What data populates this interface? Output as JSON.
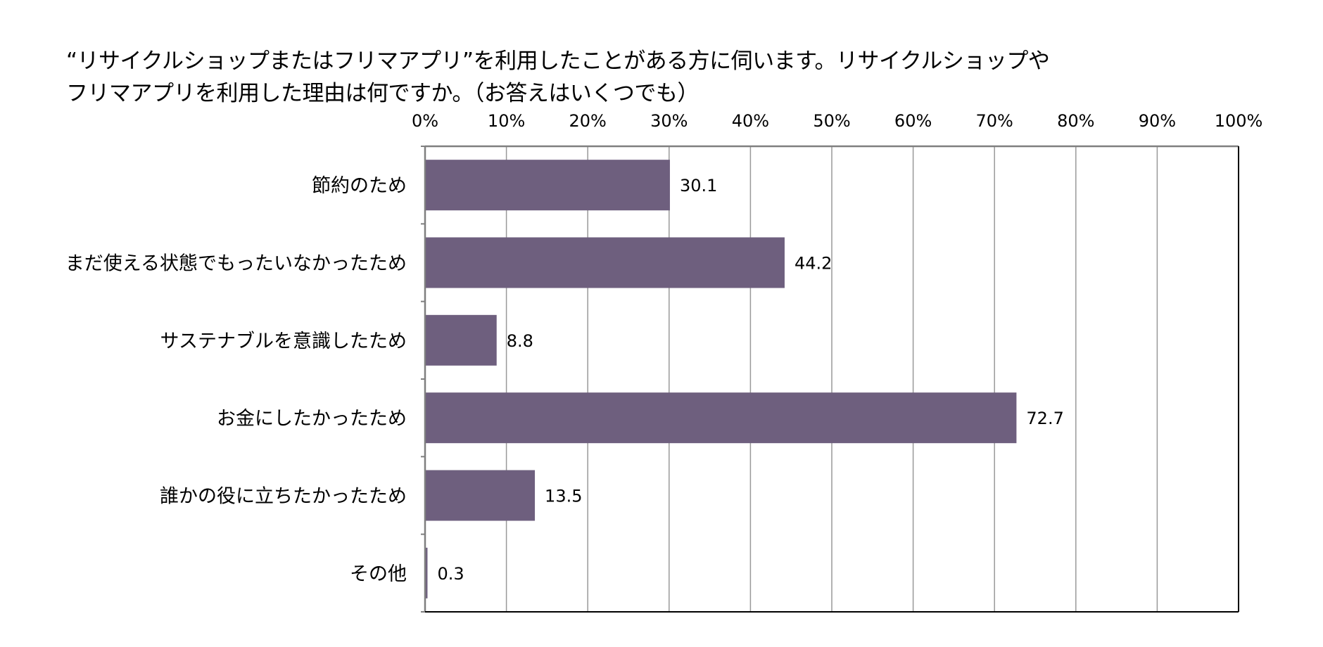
{
  "chart_data": {
    "type": "bar",
    "orientation": "horizontal",
    "title_lines": [
      "“リサイクルショップまたはフリマアプリ”を利用したことがある方に伺います。リサイクルショップや",
      "フリマアプリを利用した理由は何ですか。（お答えはいくつでも）"
    ],
    "categories": [
      "節約のため",
      "まだ使える状態でもったいなかったため",
      "サステナブルを意識したため",
      "お金にしたかったため",
      "誰かの役に立ちたかったため",
      "その他"
    ],
    "values": [
      30.1,
      44.2,
      8.8,
      72.7,
      13.5,
      0.3
    ],
    "value_labels": [
      "30.1",
      "44.2",
      "8.8",
      "72.7",
      "13.5",
      "0.3"
    ],
    "xlim": [
      0,
      100
    ],
    "x_ticks": [
      0,
      10,
      20,
      30,
      40,
      50,
      60,
      70,
      80,
      90,
      100
    ],
    "x_tick_labels": [
      "0%",
      "10%",
      "20%",
      "30%",
      "40%",
      "50%",
      "60%",
      "70%",
      "80%",
      "90%",
      "100%"
    ],
    "axis_position": "top",
    "grid": true,
    "legend": "none",
    "bar_color": "#6e5f7e",
    "grid_color": "#999999",
    "frame_color": "#000000"
  }
}
